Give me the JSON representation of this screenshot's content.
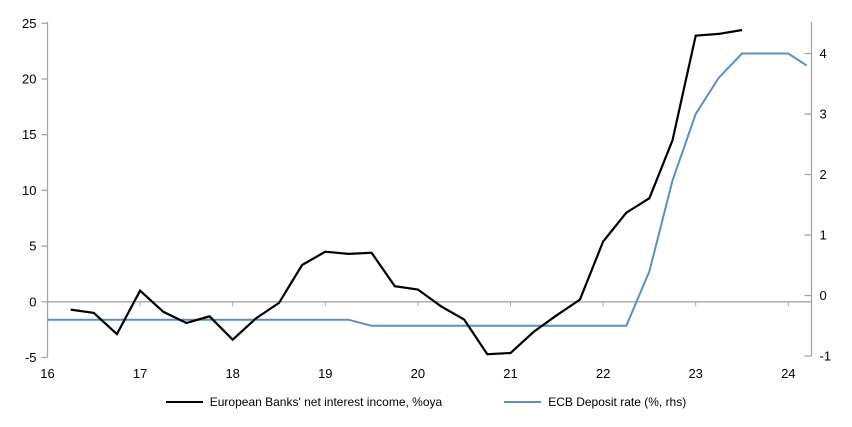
{
  "chart_data": {
    "type": "line",
    "title": "",
    "x_axis": {
      "tick_labels": [
        "16",
        "17",
        "18",
        "19",
        "20",
        "21",
        "22",
        "23",
        "24"
      ],
      "tick_years": [
        16,
        17,
        18,
        19,
        20,
        21,
        22,
        23,
        24
      ],
      "range": [
        16,
        24.25
      ],
      "zero_line_year_ticks": [
        17,
        18,
        19,
        20,
        21,
        22,
        23,
        24
      ]
    },
    "left_axis": {
      "ticks": [
        25,
        20,
        15,
        10,
        5,
        0,
        -5
      ],
      "range": [
        -5,
        25
      ],
      "label": ""
    },
    "right_axis": {
      "ticks": [
        4,
        3,
        2,
        1,
        0,
        -1
      ],
      "range": [
        -1,
        4.5
      ],
      "label": ""
    },
    "grid": "zero-line-only",
    "legend_position": "bottom-center",
    "series": [
      {
        "name": "European Banks' net interest income, %oya",
        "axis": "left",
        "color": "#000000",
        "points": [
          [
            16.25,
            -0.7
          ],
          [
            16.5,
            -1.0
          ],
          [
            16.75,
            -2.9
          ],
          [
            17.0,
            1.0
          ],
          [
            17.25,
            -0.9
          ],
          [
            17.5,
            -1.9
          ],
          [
            17.75,
            -1.3
          ],
          [
            18.0,
            -3.4
          ],
          [
            18.25,
            -1.5
          ],
          [
            18.5,
            -0.1
          ],
          [
            18.75,
            3.3
          ],
          [
            19.0,
            4.5
          ],
          [
            19.25,
            4.3
          ],
          [
            19.5,
            4.4
          ],
          [
            19.75,
            1.4
          ],
          [
            20.0,
            1.1
          ],
          [
            20.25,
            -0.4
          ],
          [
            20.5,
            -1.6
          ],
          [
            20.75,
            -4.7
          ],
          [
            21.0,
            -4.6
          ],
          [
            21.25,
            -2.7
          ],
          [
            21.5,
            -1.2
          ],
          [
            21.75,
            0.2
          ],
          [
            22.0,
            5.4
          ],
          [
            22.25,
            8.0
          ],
          [
            22.5,
            9.3
          ],
          [
            22.75,
            14.5
          ],
          [
            23.0,
            23.9
          ],
          [
            23.25,
            24.05
          ],
          [
            23.5,
            24.4
          ]
        ]
      },
      {
        "name": "ECB Deposit rate (%, rhs)",
        "axis": "right",
        "color": "#5B8FC4",
        "points": [
          [
            16.0,
            -0.4
          ],
          [
            19.25,
            -0.4
          ],
          [
            19.5,
            -0.5
          ],
          [
            22.25,
            -0.5
          ],
          [
            22.5,
            0.4
          ],
          [
            22.75,
            1.9
          ],
          [
            23.0,
            3.0
          ],
          [
            23.25,
            3.6
          ],
          [
            23.5,
            4.0
          ],
          [
            24.0,
            4.0
          ],
          [
            24.2,
            3.8
          ]
        ]
      }
    ]
  },
  "colors": {
    "axis_line": "#A6A6A6",
    "zero_line": "#A6A6A6",
    "tick_text": "#000000",
    "background": "#FFFFFF",
    "nii_line": "#000000",
    "ecb_line": "#5B8FC4"
  }
}
